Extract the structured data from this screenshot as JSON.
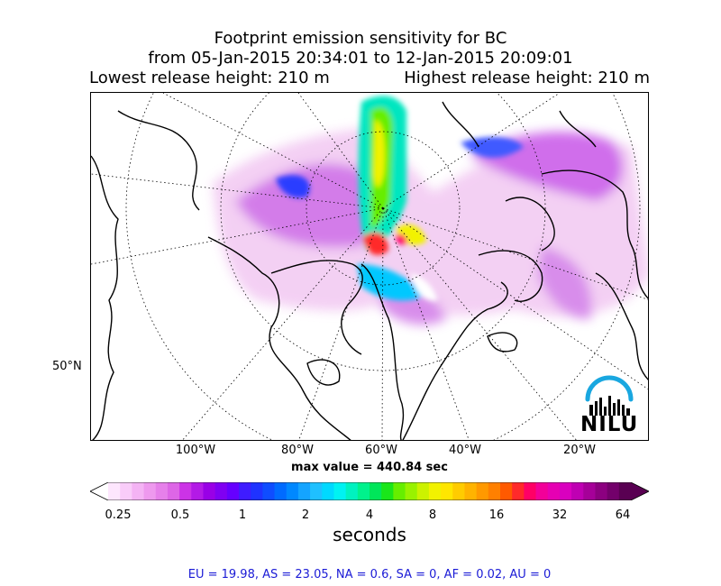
{
  "title": {
    "line1": "Footprint emission sensitivity for BC",
    "line2": "from 05-Jan-2015 20:34:01 to 12-Jan-2015 20:09:01",
    "lowest": "Lowest release height: 210 m",
    "highest": "Highest release height: 210 m"
  },
  "axes": {
    "x_ticks": [
      "100°W",
      "80°W",
      "60°W",
      "40°W",
      "20°W"
    ],
    "y_ticks": [
      "50°N"
    ]
  },
  "max_value": "max value = 440.84 sec",
  "colorbar": {
    "ticks": [
      "0.25",
      "0.5",
      "1",
      "2",
      "4",
      "8",
      "16",
      "32",
      "64"
    ],
    "units": "seconds",
    "scale": "log",
    "extend": "both",
    "colors": [
      "#fde6fd",
      "#f9ccf9",
      "#f4b3f4",
      "#ee99ee",
      "#e680ea",
      "#dd66e6",
      "#cc33e6",
      "#b31ae6",
      "#9900e6",
      "#8000f2",
      "#6600ff",
      "#3f1cff",
      "#1f33ff",
      "#0f4dff",
      "#006bff",
      "#0088ff",
      "#14a4ff",
      "#1fc0ff",
      "#00d9ff",
      "#00f2f2",
      "#00f2c0",
      "#00f28c",
      "#00e65a",
      "#1ae61a",
      "#66ee00",
      "#99f200",
      "#ccf200",
      "#f2f200",
      "#ffe600",
      "#ffcc00",
      "#ffb300",
      "#ff9900",
      "#ff8000",
      "#ff5a00",
      "#ff2a2a",
      "#ff0066",
      "#f20099",
      "#e600b3",
      "#d900bf",
      "#bf00b3",
      "#a60099",
      "#8c0080",
      "#73006b",
      "#590052"
    ]
  },
  "regions": "EU = 19.98,  AS = 23.05,  NA = 0.6,  SA = 0,  AF = 0.02,  AU = 0",
  "logo": {
    "text": "NILU",
    "arc_color": "#19a7e0"
  }
}
